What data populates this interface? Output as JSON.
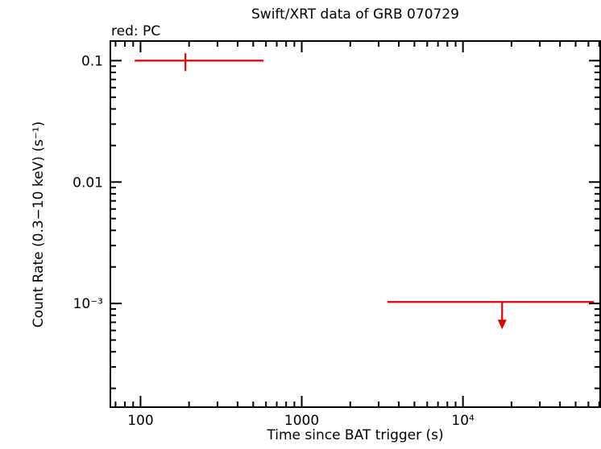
{
  "legend": {
    "label": "red: PC",
    "color": "#e00000"
  },
  "chart_data": {
    "type": "scatter",
    "title": "Swift/XRT data of GRB 070729",
    "xlabel": "Time since BAT trigger (s)",
    "ylabel": "Count Rate (0.3−10 keV) (s⁻¹)",
    "xscale": "log",
    "yscale": "log",
    "xlim": [
      65,
      71000
    ],
    "ylim": [
      0.00014,
      0.145
    ],
    "grid": false,
    "x_major_ticks": [
      {
        "value": 100,
        "label": "100"
      },
      {
        "value": 1000,
        "label": "1000"
      },
      {
        "value": 10000,
        "label": "10⁴"
      }
    ],
    "y_major_ticks": [
      {
        "value": 0.1,
        "label": "0.1"
      },
      {
        "value": 0.01,
        "label": "0.01"
      },
      {
        "value": 0.001,
        "label": "10⁻³"
      }
    ],
    "series": [
      {
        "name": "PC",
        "mode": "WT/PC light curve point with asymmetric time bins",
        "color": "#e00000",
        "points": [
          {
            "type": "detection",
            "t": 190,
            "t_lo": 92,
            "t_hi": 580,
            "rate": 0.1,
            "rate_lo": 0.082,
            "rate_hi": 0.115
          },
          {
            "type": "upper_limit",
            "t": 17500,
            "t_lo": 3400,
            "t_hi": 65000,
            "rate": 0.00103
          }
        ]
      }
    ]
  }
}
